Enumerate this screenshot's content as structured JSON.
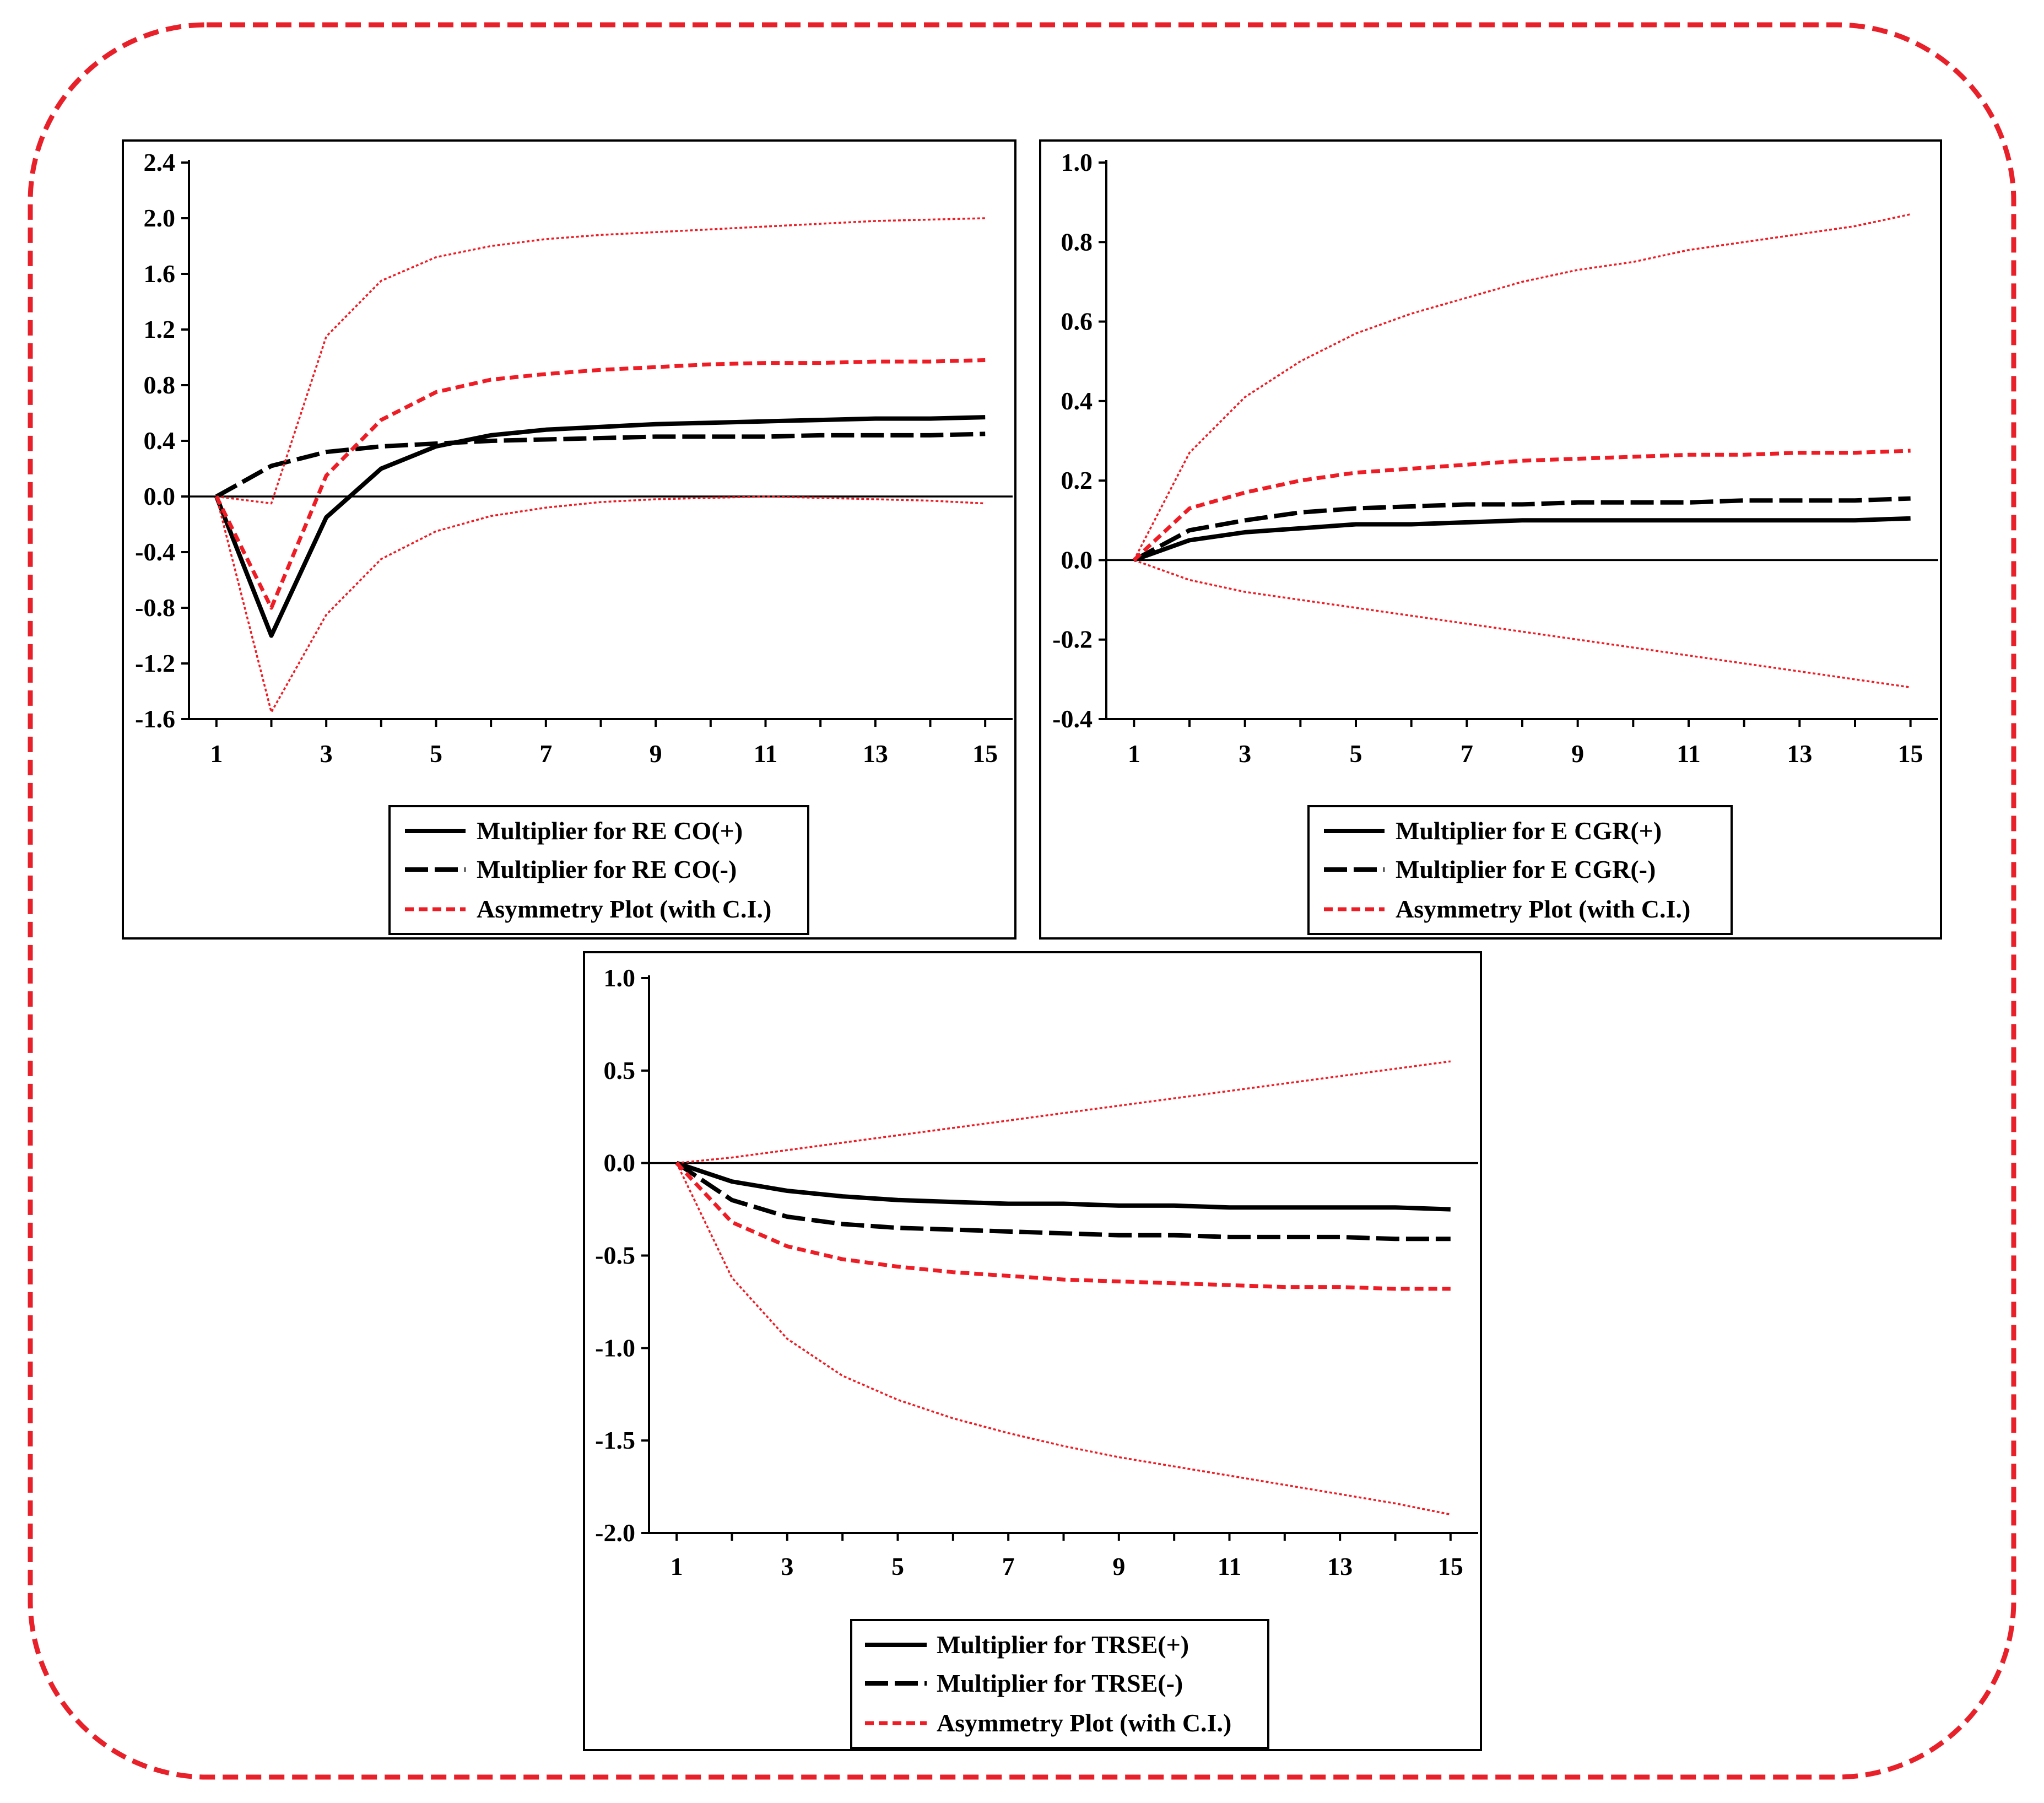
{
  "colors": {
    "frame": "#e8202a",
    "multiplier": "#000000",
    "asymmetry": "#ee1c24",
    "axis": "#000000"
  },
  "chart_data": [
    {
      "type": "line",
      "x": [
        1,
        2,
        3,
        4,
        5,
        6,
        7,
        8,
        9,
        10,
        11,
        12,
        13,
        14,
        15
      ],
      "xticks": [
        "1",
        "3",
        "5",
        "7",
        "9",
        "11",
        "13",
        "15"
      ],
      "xlim": [
        0.5,
        15.5
      ],
      "yticks": [
        "2.4",
        "2.0",
        "1.6",
        "1.2",
        "0.8",
        "0.4",
        "0.0",
        "-0.4",
        "-0.8",
        "-1.2",
        "-1.6"
      ],
      "ylim": [
        -1.6,
        2.4
      ],
      "series": [
        {
          "name": "Multiplier for RE CO(+)",
          "style": "solid",
          "values": [
            0.0,
            -1.0,
            -0.15,
            0.2,
            0.36,
            0.44,
            0.48,
            0.5,
            0.52,
            0.53,
            0.54,
            0.55,
            0.56,
            0.56,
            0.57
          ]
        },
        {
          "name": "Multiplier for RE CO(-)",
          "style": "dashed",
          "values": [
            0.0,
            0.22,
            0.32,
            0.36,
            0.38,
            0.4,
            0.41,
            0.42,
            0.43,
            0.43,
            0.43,
            0.44,
            0.44,
            0.44,
            0.45
          ]
        },
        {
          "name": "Asymmetry Plot (with C.I.)",
          "style": "dotted",
          "values": [
            0.0,
            -0.8,
            0.15,
            0.55,
            0.75,
            0.84,
            0.88,
            0.91,
            0.93,
            0.95,
            0.96,
            0.96,
            0.97,
            0.97,
            0.98
          ]
        },
        {
          "name": "Asymmetry upper bound",
          "style": "fine",
          "legend": false,
          "values": [
            0.0,
            -0.05,
            1.15,
            1.55,
            1.72,
            1.8,
            1.85,
            1.88,
            1.9,
            1.92,
            1.94,
            1.96,
            1.98,
            1.99,
            2.0
          ]
        },
        {
          "name": "Asymmetry lower bound",
          "style": "fine",
          "legend": false,
          "values": [
            0.0,
            -1.55,
            -0.85,
            -0.45,
            -0.25,
            -0.14,
            -0.08,
            -0.04,
            -0.02,
            -0.01,
            0.0,
            -0.01,
            -0.02,
            -0.03,
            -0.05
          ]
        }
      ]
    },
    {
      "type": "line",
      "x": [
        1,
        2,
        3,
        4,
        5,
        6,
        7,
        8,
        9,
        10,
        11,
        12,
        13,
        14,
        15
      ],
      "xticks": [
        "1",
        "3",
        "5",
        "7",
        "9",
        "11",
        "13",
        "15"
      ],
      "xlim": [
        0.5,
        15.5
      ],
      "yticks": [
        "1.0",
        "0.8",
        "0.6",
        "0.4",
        "0.2",
        "0.0",
        "-0.2",
        "-0.4"
      ],
      "ylim": [
        -0.4,
        1.0
      ],
      "series": [
        {
          "name": "Multiplier for E CGR(+)",
          "style": "solid",
          "values": [
            0.0,
            0.05,
            0.07,
            0.08,
            0.09,
            0.09,
            0.095,
            0.1,
            0.1,
            0.1,
            0.1,
            0.1,
            0.1,
            0.1,
            0.105
          ]
        },
        {
          "name": "Multiplier for E CGR(-)",
          "style": "dashed",
          "values": [
            0.0,
            0.075,
            0.1,
            0.12,
            0.13,
            0.135,
            0.14,
            0.14,
            0.145,
            0.145,
            0.145,
            0.15,
            0.15,
            0.15,
            0.155
          ]
        },
        {
          "name": "Asymmetry Plot (with C.I.)",
          "style": "dotted",
          "values": [
            0.0,
            0.13,
            0.17,
            0.2,
            0.22,
            0.23,
            0.24,
            0.25,
            0.255,
            0.26,
            0.265,
            0.265,
            0.27,
            0.27,
            0.275
          ]
        },
        {
          "name": "Asymmetry upper bound",
          "style": "fine",
          "legend": false,
          "values": [
            0.0,
            0.27,
            0.41,
            0.5,
            0.57,
            0.62,
            0.66,
            0.7,
            0.73,
            0.75,
            0.78,
            0.8,
            0.82,
            0.84,
            0.87
          ]
        },
        {
          "name": "Asymmetry lower bound",
          "style": "fine",
          "legend": false,
          "values": [
            0.0,
            -0.05,
            -0.08,
            -0.1,
            -0.12,
            -0.14,
            -0.16,
            -0.18,
            -0.2,
            -0.22,
            -0.24,
            -0.26,
            -0.28,
            -0.3,
            -0.32
          ]
        }
      ]
    },
    {
      "type": "line",
      "x": [
        1,
        2,
        3,
        4,
        5,
        6,
        7,
        8,
        9,
        10,
        11,
        12,
        13,
        14,
        15
      ],
      "xticks": [
        "1",
        "3",
        "5",
        "7",
        "9",
        "11",
        "13",
        "15"
      ],
      "xlim": [
        0.5,
        15.5
      ],
      "yticks": [
        "1.0",
        "0.5",
        "0.0",
        "-0.5",
        "-1.0",
        "-1.5",
        "-2.0"
      ],
      "ylim": [
        -2.0,
        1.0
      ],
      "series": [
        {
          "name": "Multiplier for TRSE(+)",
          "style": "solid",
          "values": [
            0.0,
            -0.1,
            -0.15,
            -0.18,
            -0.2,
            -0.21,
            -0.22,
            -0.22,
            -0.23,
            -0.23,
            -0.24,
            -0.24,
            -0.24,
            -0.24,
            -0.25
          ]
        },
        {
          "name": "Multiplier for TRSE(-)",
          "style": "dashed",
          "values": [
            0.0,
            -0.2,
            -0.29,
            -0.33,
            -0.35,
            -0.36,
            -0.37,
            -0.38,
            -0.39,
            -0.39,
            -0.4,
            -0.4,
            -0.4,
            -0.41,
            -0.41
          ]
        },
        {
          "name": "Asymmetry Plot (with C.I.)",
          "style": "dotted",
          "values": [
            0.0,
            -0.32,
            -0.45,
            -0.52,
            -0.56,
            -0.59,
            -0.61,
            -0.63,
            -0.64,
            -0.65,
            -0.66,
            -0.67,
            -0.67,
            -0.68,
            -0.68
          ]
        },
        {
          "name": "Asymmetry upper bound",
          "style": "fine",
          "legend": false,
          "values": [
            0.0,
            0.03,
            0.07,
            0.11,
            0.15,
            0.19,
            0.23,
            0.27,
            0.31,
            0.35,
            0.39,
            0.43,
            0.47,
            0.51,
            0.55
          ]
        },
        {
          "name": "Asymmetry lower bound",
          "style": "fine",
          "legend": false,
          "values": [
            0.0,
            -0.62,
            -0.95,
            -1.15,
            -1.28,
            -1.38,
            -1.46,
            -1.53,
            -1.59,
            -1.64,
            -1.69,
            -1.74,
            -1.79,
            -1.84,
            -1.9
          ]
        }
      ]
    }
  ]
}
